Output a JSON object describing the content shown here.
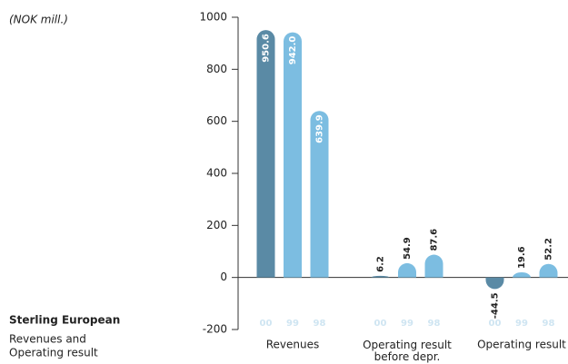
{
  "chart_data": {
    "type": "bar",
    "unit_label": "(NOK mill.)",
    "title": "Sterling European",
    "subtitle": [
      "Revenues and",
      "Operating result"
    ],
    "categories": [
      "Revenues",
      "Operating result\nbefore depr.",
      "Operating result"
    ],
    "series": [
      {
        "name": "00",
        "color": "#5a8aa5",
        "values": [
          950.6,
          6.2,
          -44.5
        ],
        "value_labels": [
          "950.6",
          "6.2",
          "-44.5"
        ]
      },
      {
        "name": "99",
        "color": "#7cbde1",
        "values": [
          942,
          54.9,
          19.6
        ],
        "value_labels": [
          "942.0",
          "54.9",
          "19.6"
        ]
      },
      {
        "name": "98",
        "color": "#7cbde1",
        "values": [
          639.9,
          87.6,
          52.2
        ],
        "value_labels": [
          "639.9",
          "87.6",
          "52.2"
        ]
      }
    ],
    "ylim": [
      -200,
      1000
    ],
    "yticks": [
      -200,
      0,
      200,
      400,
      600,
      800,
      1000
    ]
  }
}
